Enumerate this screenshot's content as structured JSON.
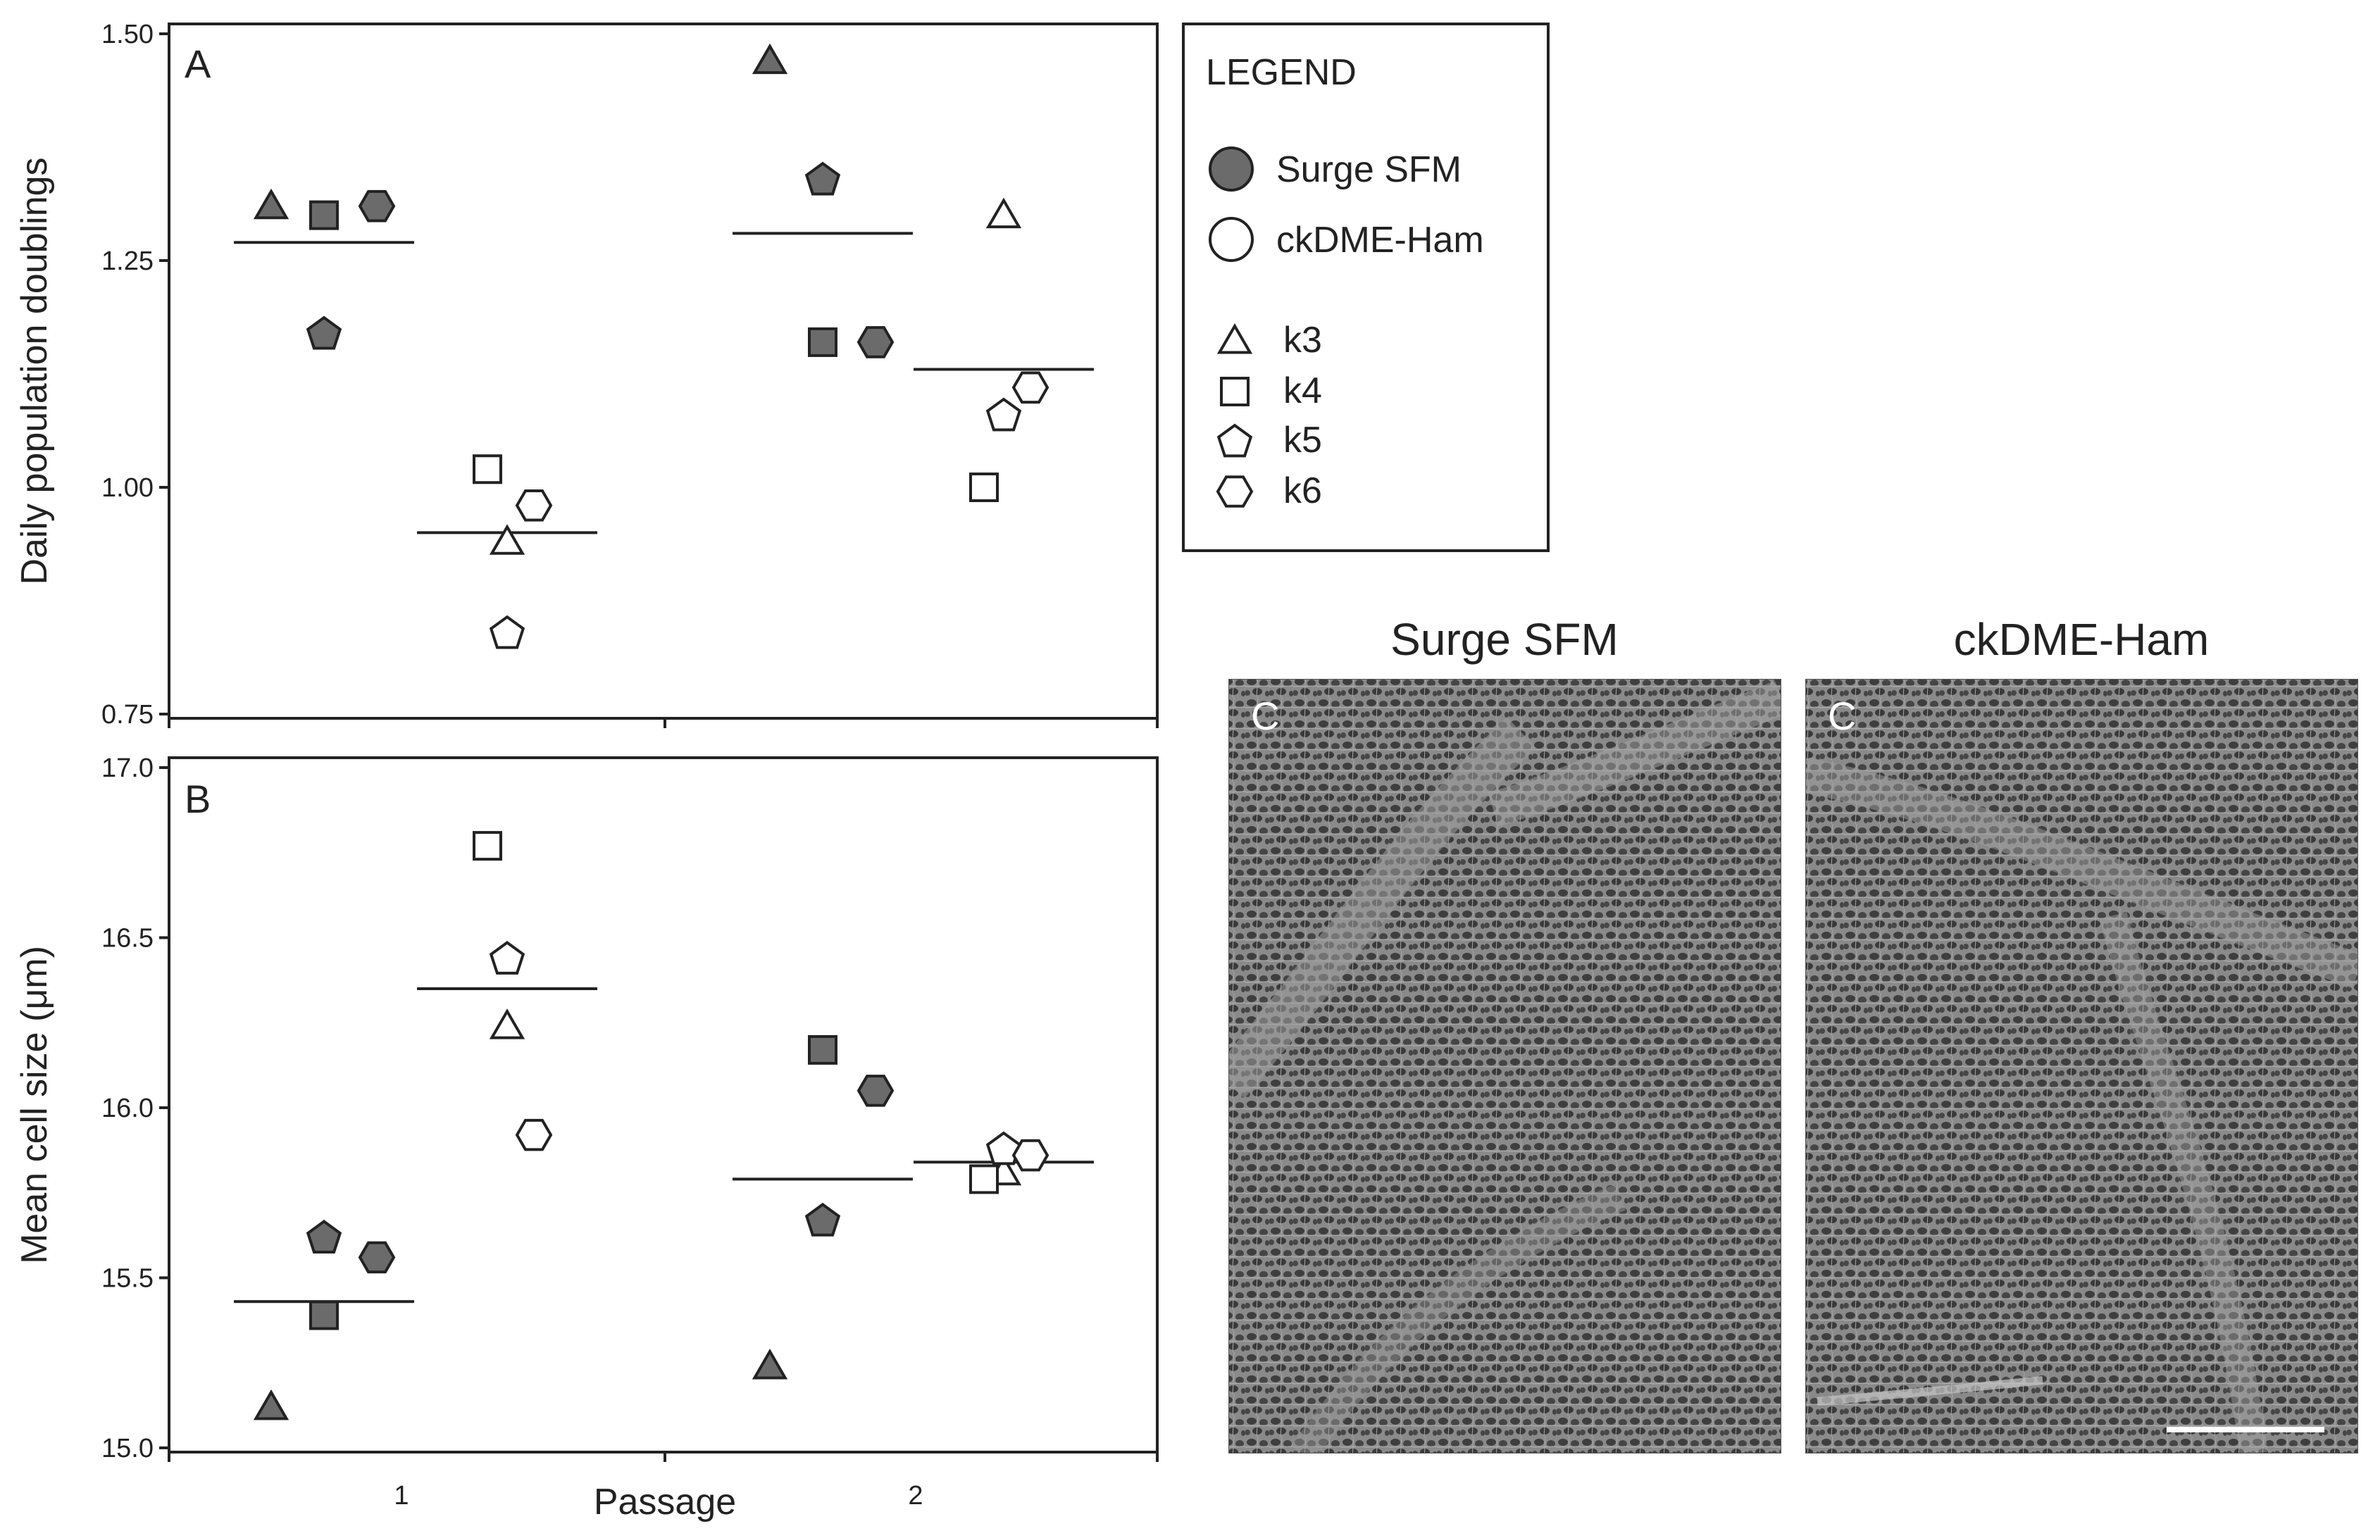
{
  "colors": {
    "surge_fill": "#6b6b6b",
    "ckdme_fill": "#ffffff",
    "stroke": "#222222",
    "photo_bg": "#7a7a7a"
  },
  "legend": {
    "title": "LEGEND",
    "media": [
      {
        "label": "Surge SFM",
        "icon": "filled-circle"
      },
      {
        "label": "ckDME-Ham",
        "icon": "open-circle"
      }
    ],
    "strains": [
      {
        "label": "k3",
        "icon": "triangle"
      },
      {
        "label": "k4",
        "icon": "square"
      },
      {
        "label": "k5",
        "icon": "pentagon"
      },
      {
        "label": "k6",
        "icon": "hexagon"
      }
    ]
  },
  "chart_data": [
    {
      "type": "scatter",
      "panel": "A",
      "ylabel": "Daily population doublings",
      "xlabel": "",
      "ylim": [
        0.75,
        1.5
      ],
      "yticks": [
        "0.75",
        "1.00",
        "1.25",
        "1.50"
      ],
      "groups": [
        {
          "passage": 1,
          "medium": "Surge SFM",
          "mean": 1.27,
          "points": [
            {
              "strain": "k3",
              "y": 1.31
            },
            {
              "strain": "k4",
              "y": 1.3
            },
            {
              "strain": "k5",
              "y": 1.17
            },
            {
              "strain": "k6",
              "y": 1.31
            }
          ]
        },
        {
          "passage": 1,
          "medium": "ckDME-Ham",
          "mean": 0.95,
          "points": [
            {
              "strain": "k3",
              "y": 0.94
            },
            {
              "strain": "k4",
              "y": 1.02
            },
            {
              "strain": "k5",
              "y": 0.84
            },
            {
              "strain": "k6",
              "y": 0.98
            }
          ]
        },
        {
          "passage": 2,
          "medium": "Surge SFM",
          "mean": 1.28,
          "points": [
            {
              "strain": "k3",
              "y": 1.47
            },
            {
              "strain": "k4",
              "y": 1.16
            },
            {
              "strain": "k5",
              "y": 1.34
            },
            {
              "strain": "k6",
              "y": 1.16
            }
          ]
        },
        {
          "passage": 2,
          "medium": "ckDME-Ham",
          "mean": 1.13,
          "points": [
            {
              "strain": "k3",
              "y": 1.3
            },
            {
              "strain": "k4",
              "y": 1.0
            },
            {
              "strain": "k5",
              "y": 1.08
            },
            {
              "strain": "k6",
              "y": 1.11
            }
          ]
        }
      ]
    },
    {
      "type": "scatter",
      "panel": "B",
      "ylabel": "Mean cell size (μm)",
      "xlabel": "Passage",
      "ylim": [
        15.0,
        17.0
      ],
      "yticks": [
        "15.0",
        "15.5",
        "16.0",
        "16.5",
        "17.0"
      ],
      "xticks": [
        "1",
        "2"
      ],
      "groups": [
        {
          "passage": 1,
          "medium": "Surge SFM",
          "mean": 15.43,
          "points": [
            {
              "strain": "k3",
              "y": 15.12
            },
            {
              "strain": "k4",
              "y": 15.39
            },
            {
              "strain": "k5",
              "y": 15.62
            },
            {
              "strain": "k6",
              "y": 15.56
            }
          ]
        },
        {
          "passage": 1,
          "medium": "ckDME-Ham",
          "mean": 16.35,
          "points": [
            {
              "strain": "k3",
              "y": 16.24
            },
            {
              "strain": "k4",
              "y": 16.77
            },
            {
              "strain": "k5",
              "y": 16.44
            },
            {
              "strain": "k6",
              "y": 15.92
            }
          ]
        },
        {
          "passage": 2,
          "medium": "Surge SFM",
          "mean": 15.79,
          "points": [
            {
              "strain": "k3",
              "y": 15.24
            },
            {
              "strain": "k4",
              "y": 16.17
            },
            {
              "strain": "k5",
              "y": 15.67
            },
            {
              "strain": "k6",
              "y": 16.05
            }
          ]
        },
        {
          "passage": 2,
          "medium": "ckDME-Ham",
          "mean": 15.84,
          "points": [
            {
              "strain": "k3",
              "y": 15.81
            },
            {
              "strain": "k4",
              "y": 15.79
            },
            {
              "strain": "k5",
              "y": 15.88
            },
            {
              "strain": "k6",
              "y": 15.86
            }
          ]
        }
      ]
    }
  ],
  "photos": [
    {
      "title": "Surge SFM",
      "label": "C"
    },
    {
      "title": "ckDME-Ham",
      "label": "C"
    }
  ]
}
